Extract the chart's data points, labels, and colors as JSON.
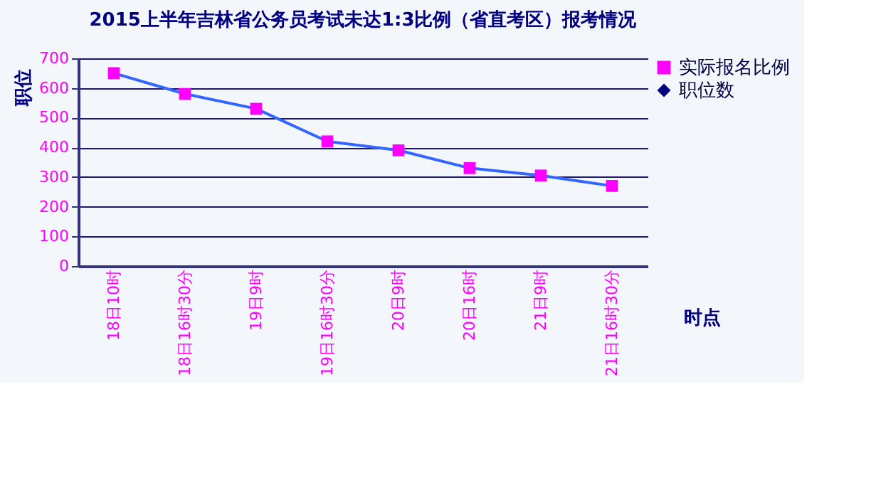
{
  "chart_data": {
    "type": "line",
    "title": "2015上半年吉林省公务员考试未达1:3比例（省直考区）报考情况",
    "xlabel": "时点",
    "ylabel": "职位",
    "categories": [
      "18日10时",
      "18日16时30分",
      "19日9时",
      "19日16时30分",
      "20日9时",
      "20日16时",
      "21日9时",
      "21日16时30分"
    ],
    "series": [
      {
        "name": "实际报名比例",
        "color": "#3366ff",
        "colors": [
          "#ff00ff",
          "#ff00ff",
          "#ff00ff",
          "#ff00ff",
          "#ff00ff",
          "#ff00ff",
          "#ff00ff",
          "#ff00ff"
        ],
        "marker": "square",
        "values": [
          650,
          580,
          530,
          420,
          390,
          330,
          305,
          270
        ]
      },
      {
        "name": "职位数",
        "color": "#000080",
        "marker": "diamond",
        "values": [
          null,
          null,
          null,
          null,
          null,
          null,
          null,
          null
        ]
      }
    ],
    "ylim": [
      0,
      700
    ],
    "yticks": [
      0,
      100,
      200,
      300,
      400,
      500,
      600,
      700
    ],
    "grid": "y",
    "legend": "right",
    "line_style": "solid"
  }
}
